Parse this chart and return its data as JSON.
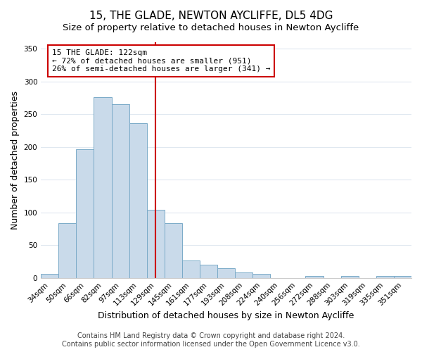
{
  "title": "15, THE GLADE, NEWTON AYCLIFFE, DL5 4DG",
  "subtitle": "Size of property relative to detached houses in Newton Aycliffe",
  "xlabel": "Distribution of detached houses by size in Newton Aycliffe",
  "ylabel": "Number of detached properties",
  "bar_labels": [
    "34sqm",
    "50sqm",
    "66sqm",
    "82sqm",
    "97sqm",
    "113sqm",
    "129sqm",
    "145sqm",
    "161sqm",
    "177sqm",
    "193sqm",
    "208sqm",
    "224sqm",
    "240sqm",
    "256sqm",
    "272sqm",
    "288sqm",
    "303sqm",
    "319sqm",
    "335sqm",
    "351sqm"
  ],
  "bar_values": [
    6,
    84,
    196,
    276,
    265,
    236,
    104,
    84,
    27,
    20,
    15,
    8,
    6,
    0,
    0,
    3,
    0,
    3,
    0,
    3,
    3
  ],
  "bar_color": "#c9daea",
  "bar_edge_color": "#7aaac8",
  "reference_line_x": 6.0,
  "reference_line_color": "#cc0000",
  "annotation_text": "15 THE GLADE: 122sqm\n← 72% of detached houses are smaller (951)\n26% of semi-detached houses are larger (341) →",
  "annotation_box_color": "#ffffff",
  "annotation_box_edge_color": "#cc0000",
  "ylim": [
    0,
    360
  ],
  "yticks": [
    0,
    50,
    100,
    150,
    200,
    250,
    300,
    350
  ],
  "footer_text": "Contains HM Land Registry data © Crown copyright and database right 2024.\nContains public sector information licensed under the Open Government Licence v3.0.",
  "background_color": "#ffffff",
  "plot_background_color": "#ffffff",
  "grid_color": "#e0e8f0",
  "title_fontsize": 11,
  "subtitle_fontsize": 9.5,
  "xlabel_fontsize": 9,
  "ylabel_fontsize": 9,
  "tick_fontsize": 7.5,
  "footer_fontsize": 7,
  "annotation_fontsize": 8
}
